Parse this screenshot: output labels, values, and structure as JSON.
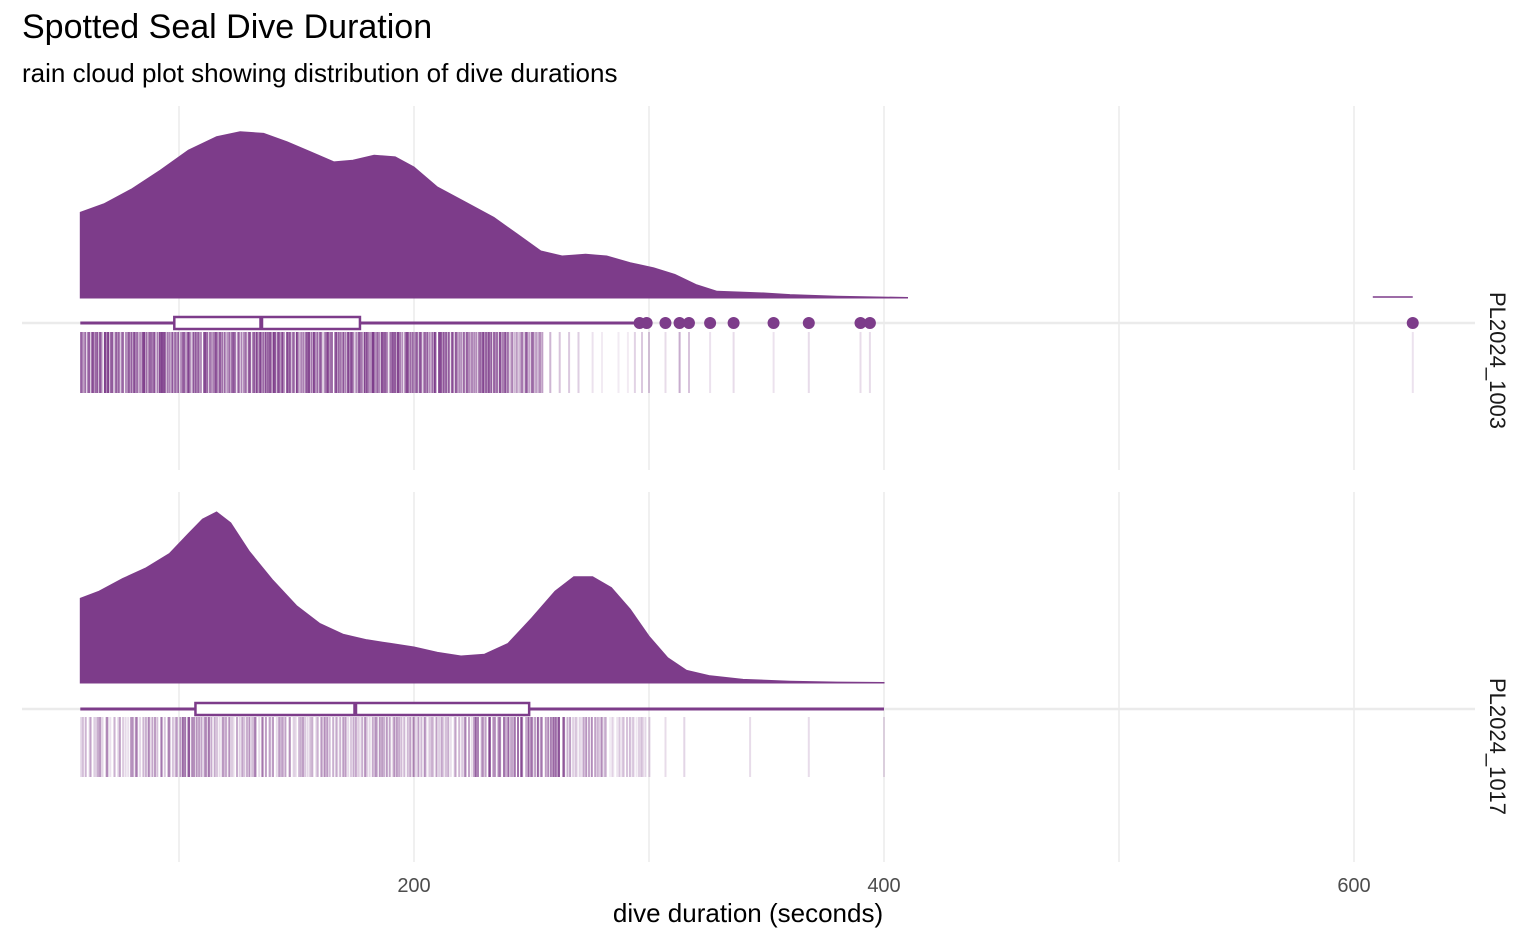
{
  "title": "Spotted Seal Dive Duration",
  "subtitle": "rain cloud plot showing distribution of dive durations",
  "chart_data": {
    "type": "raincloud",
    "title": "Spotted Seal Dive Duration",
    "subtitle": "rain cloud plot showing distribution of dive durations",
    "xlabel": "dive duration (seconds)",
    "ylabel": "",
    "xlim": [
      0,
      660
    ],
    "x_ticks": [
      200,
      400,
      600
    ],
    "grid": true,
    "legend": "none",
    "fill_color": "#7D3C8A",
    "panels": [
      {
        "label": "PL2024_1003",
        "x_range": [
          58,
          625
        ],
        "density_curve": [
          [
            58,
            0.51
          ],
          [
            68,
            0.56
          ],
          [
            80,
            0.65
          ],
          [
            92,
            0.76
          ],
          [
            104,
            0.88
          ],
          [
            116,
            0.96
          ],
          [
            126,
            0.99
          ],
          [
            136,
            0.98
          ],
          [
            146,
            0.93
          ],
          [
            156,
            0.87
          ],
          [
            166,
            0.81
          ],
          [
            174,
            0.82
          ],
          [
            183,
            0.85
          ],
          [
            192,
            0.84
          ],
          [
            200,
            0.78
          ],
          [
            210,
            0.66
          ],
          [
            222,
            0.57
          ],
          [
            234,
            0.48
          ],
          [
            244,
            0.38
          ],
          [
            254,
            0.28
          ],
          [
            263,
            0.25
          ],
          [
            273,
            0.26
          ],
          [
            282,
            0.25
          ],
          [
            292,
            0.21
          ],
          [
            302,
            0.18
          ],
          [
            311,
            0.14
          ],
          [
            320,
            0.08
          ],
          [
            329,
            0.04
          ],
          [
            339,
            0.035
          ],
          [
            349,
            0.03
          ],
          [
            360,
            0.02
          ],
          [
            380,
            0.01
          ],
          [
            410,
            0.003
          ]
        ],
        "outlier_density": [
          [
            608,
            0.005
          ],
          [
            625,
            0.005
          ]
        ],
        "box": {
          "q1": 98,
          "median": 135,
          "q3": 177,
          "whisker_low": 58,
          "whisker_high": 295
        },
        "outliers": [
          296,
          299,
          307,
          313,
          317,
          326,
          336,
          353,
          368,
          390,
          394,
          625
        ],
        "rain": {
          "dense_ranges": [
            [
              58,
              255
            ]
          ],
          "medium": [
            [
              258,
              0.75
            ],
            [
              262,
              0.6
            ],
            [
              266,
              0.55
            ],
            [
              270,
              0.5
            ],
            [
              276,
              0.3
            ],
            [
              280,
              0.2
            ],
            [
              287,
              0.2
            ],
            [
              291,
              0.2
            ],
            [
              294,
              0.45
            ],
            [
              297,
              0.55
            ],
            [
              300,
              0.55
            ]
          ],
          "sparse": [
            [
              307,
              0.3
            ],
            [
              313,
              0.7
            ],
            [
              317,
              0.5
            ],
            [
              326,
              0.25
            ],
            [
              336,
              0.3
            ],
            [
              353,
              0.25
            ],
            [
              368,
              0.3
            ],
            [
              390,
              0.3
            ],
            [
              394,
              0.3
            ],
            [
              625,
              0.25
            ]
          ]
        }
      },
      {
        "label": "PL2024_1017",
        "x_range": [
          58,
          400
        ],
        "density_curve": [
          [
            58,
            0.47
          ],
          [
            66,
            0.51
          ],
          [
            76,
            0.58
          ],
          [
            86,
            0.64
          ],
          [
            96,
            0.72
          ],
          [
            104,
            0.83
          ],
          [
            110,
            0.91
          ],
          [
            116,
            0.95
          ],
          [
            122,
            0.89
          ],
          [
            130,
            0.73
          ],
          [
            140,
            0.57
          ],
          [
            150,
            0.43
          ],
          [
            160,
            0.33
          ],
          [
            170,
            0.27
          ],
          [
            180,
            0.24
          ],
          [
            190,
            0.22
          ],
          [
            200,
            0.2
          ],
          [
            210,
            0.17
          ],
          [
            220,
            0.15
          ],
          [
            230,
            0.16
          ],
          [
            240,
            0.22
          ],
          [
            250,
            0.36
          ],
          [
            260,
            0.51
          ],
          [
            268,
            0.59
          ],
          [
            276,
            0.59
          ],
          [
            284,
            0.53
          ],
          [
            292,
            0.41
          ],
          [
            300,
            0.26
          ],
          [
            308,
            0.14
          ],
          [
            316,
            0.07
          ],
          [
            326,
            0.04
          ],
          [
            340,
            0.02
          ],
          [
            360,
            0.01
          ],
          [
            380,
            0.005
          ],
          [
            400,
            0.003
          ]
        ],
        "box": {
          "q1": 107,
          "median": 175,
          "q3": 249,
          "whisker_low": 58,
          "whisker_high": 400
        },
        "outliers": [],
        "rain": {
          "medium_range": [
            58,
            300
          ],
          "sparse": [
            [
              307,
              0.3
            ],
            [
              315,
              0.35
            ],
            [
              343,
              0.3
            ],
            [
              368,
              0.3
            ],
            [
              400,
              0.3
            ]
          ]
        }
      }
    ]
  }
}
